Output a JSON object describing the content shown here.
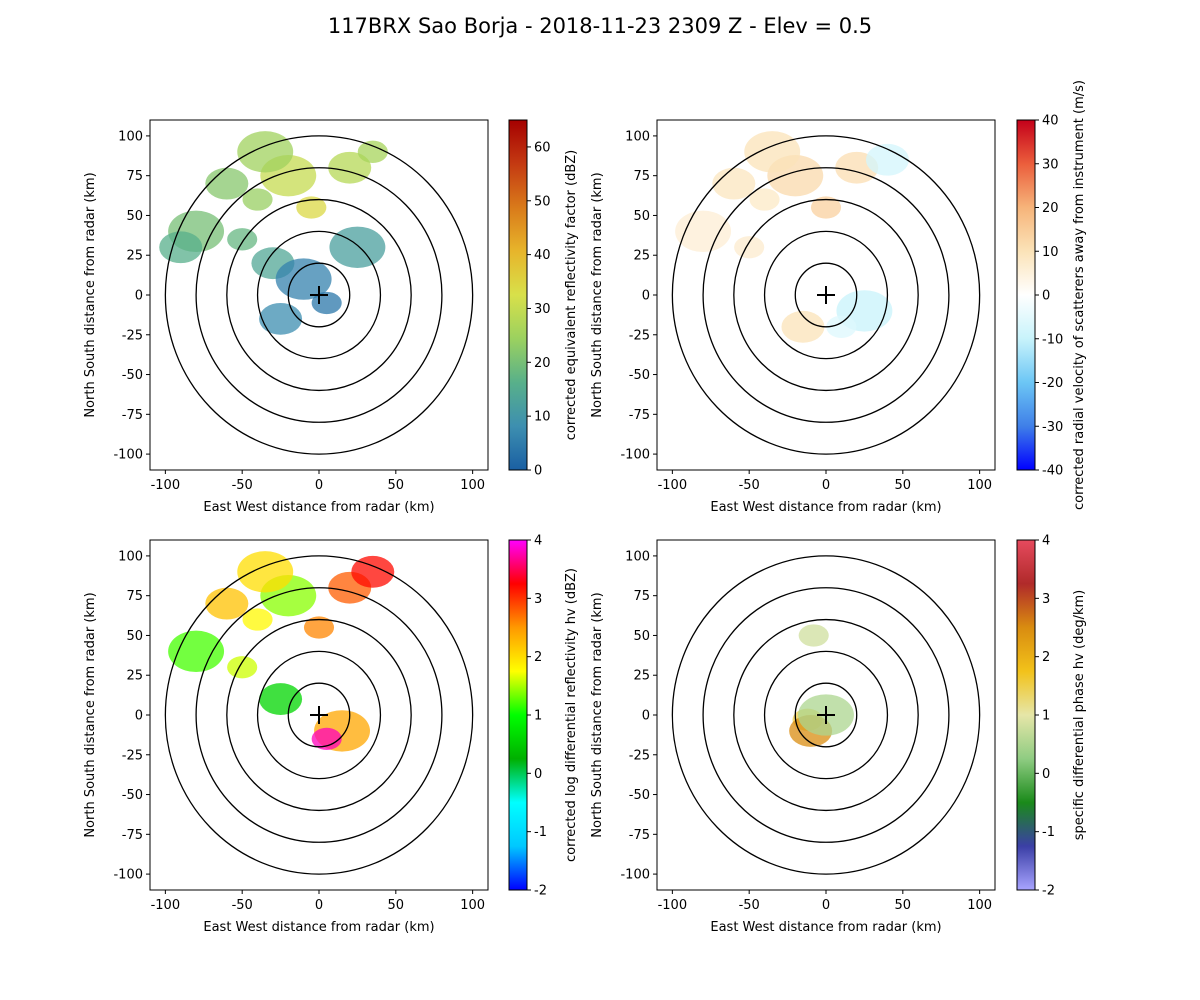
{
  "figure": {
    "title": "117BRX Sao Borja - 2018-11-23 2309 Z -  Elev = 0.5"
  },
  "chart_data": [
    {
      "type": "heatmap",
      "name": "reflectivity",
      "field": "corrected equivalent reflectivity factor (dBZ)",
      "xlabel": "East West distance from radar (km)",
      "ylabel": "North South distance from radar (km)",
      "xlim": [
        -110,
        110
      ],
      "ylim": [
        -110,
        110
      ],
      "xticks": [
        -100,
        -50,
        0,
        50,
        100
      ],
      "yticks": [
        -100,
        -75,
        -50,
        -25,
        0,
        25,
        50,
        75,
        100
      ],
      "range_rings_km": [
        20,
        40,
        60,
        80,
        100
      ],
      "colorbar": {
        "label": "corrected equivalent reflectivity factor (dBZ)",
        "min": 0,
        "max": 65,
        "ticks": [
          0,
          10,
          20,
          30,
          40,
          50,
          60
        ],
        "colors": [
          "#1a5fa3",
          "#3d8fb0",
          "#58b08a",
          "#9bd15f",
          "#d8e04a",
          "#e7b52b",
          "#d97a1a",
          "#c43a12",
          "#a50000"
        ]
      },
      "echoes": [
        {
          "x": -40,
          "y": 60,
          "value": 24
        },
        {
          "x": -60,
          "y": 70,
          "value": 22
        },
        {
          "x": -20,
          "y": 75,
          "value": 30
        },
        {
          "x": -5,
          "y": 55,
          "value": 34
        },
        {
          "x": 20,
          "y": 80,
          "value": 28
        },
        {
          "x": -80,
          "y": 40,
          "value": 20
        },
        {
          "x": -50,
          "y": 35,
          "value": 18
        },
        {
          "x": -30,
          "y": 20,
          "value": 14
        },
        {
          "x": -10,
          "y": 10,
          "value": 6
        },
        {
          "x": 5,
          "y": -5,
          "value": 4
        },
        {
          "x": -25,
          "y": -15,
          "value": 8
        },
        {
          "x": 25,
          "y": 30,
          "value": 12
        },
        {
          "x": 35,
          "y": 90,
          "value": 26
        },
        {
          "x": -90,
          "y": 30,
          "value": 16
        },
        {
          "x": -35,
          "y": 90,
          "value": 25
        }
      ]
    },
    {
      "type": "heatmap",
      "name": "velocity",
      "field": "corrected radial velocity of scatterers away from instrument (m/s)",
      "xlabel": "East West distance from radar (km)",
      "ylabel": "North South distance from radar (km)",
      "xlim": [
        -110,
        110
      ],
      "ylim": [
        -110,
        110
      ],
      "xticks": [
        -100,
        -50,
        0,
        50,
        100
      ],
      "yticks": [
        -100,
        -75,
        -50,
        -25,
        0,
        25,
        50,
        75,
        100
      ],
      "range_rings_km": [
        20,
        40,
        60,
        80,
        100
      ],
      "colorbar": {
        "label": "corrected radial velocity of scatterers away from instrument (m/s)",
        "min": -40,
        "max": 40,
        "ticks": [
          -40,
          -30,
          -20,
          -10,
          0,
          10,
          20,
          30,
          40
        ],
        "colors": [
          "#0000ff",
          "#3f7fe8",
          "#6cc6f5",
          "#c8f3fb",
          "#ffffff",
          "#fbe3b8",
          "#f6b47a",
          "#eb5e3c",
          "#c4001a"
        ]
      },
      "echoes": [
        {
          "x": -40,
          "y": 60,
          "value": 8
        },
        {
          "x": -60,
          "y": 70,
          "value": 9
        },
        {
          "x": -20,
          "y": 75,
          "value": 12
        },
        {
          "x": 0,
          "y": 55,
          "value": 14
        },
        {
          "x": 20,
          "y": 80,
          "value": 11
        },
        {
          "x": -80,
          "y": 40,
          "value": 6
        },
        {
          "x": -50,
          "y": 30,
          "value": 7
        },
        {
          "x": 40,
          "y": 85,
          "value": -8
        },
        {
          "x": 25,
          "y": -10,
          "value": -10
        },
        {
          "x": 10,
          "y": -20,
          "value": -6
        },
        {
          "x": -15,
          "y": -20,
          "value": 10
        },
        {
          "x": -35,
          "y": 90,
          "value": 10
        }
      ]
    },
    {
      "type": "heatmap",
      "name": "differential_reflectivity",
      "field": "corrected log differential reflectivity hv (dBZ)",
      "xlabel": "East West distance from radar (km)",
      "ylabel": "North South distance from radar (km)",
      "xlim": [
        -110,
        110
      ],
      "ylim": [
        -110,
        110
      ],
      "xticks": [
        -100,
        -50,
        0,
        50,
        100
      ],
      "yticks": [
        -100,
        -75,
        -50,
        -25,
        0,
        25,
        50,
        75,
        100
      ],
      "range_rings_km": [
        20,
        40,
        60,
        80,
        100
      ],
      "colorbar": {
        "label": "corrected log differential reflectivity hv (dBZ)",
        "min": -2,
        "max": 4,
        "ticks": [
          -2,
          -1,
          0,
          1,
          2,
          3,
          4
        ],
        "colors": [
          "#0000ff",
          "#00c8ff",
          "#00ffff",
          "#00b000",
          "#00ff00",
          "#ffff00",
          "#ff9900",
          "#ff0000",
          "#ff00ff"
        ]
      },
      "echoes": [
        {
          "x": -40,
          "y": 60,
          "value": 1.8
        },
        {
          "x": -60,
          "y": 70,
          "value": 2.2
        },
        {
          "x": -20,
          "y": 75,
          "value": 1.4
        },
        {
          "x": 0,
          "y": 55,
          "value": 2.6
        },
        {
          "x": 20,
          "y": 80,
          "value": 2.8
        },
        {
          "x": -80,
          "y": 40,
          "value": 1.2
        },
        {
          "x": -50,
          "y": 30,
          "value": 1.6
        },
        {
          "x": -25,
          "y": 10,
          "value": 0.6
        },
        {
          "x": 15,
          "y": -10,
          "value": 2.4
        },
        {
          "x": 5,
          "y": -15,
          "value": 3.8
        },
        {
          "x": 35,
          "y": 90,
          "value": 3.2
        },
        {
          "x": -35,
          "y": 90,
          "value": 2.0
        }
      ]
    },
    {
      "type": "heatmap",
      "name": "specific_differential_phase",
      "field": "specific differential phase hv (deg/km)",
      "xlabel": "East West distance from radar (km)",
      "ylabel": "North South distance from radar (km)",
      "xlim": [
        -110,
        110
      ],
      "ylim": [
        -110,
        110
      ],
      "xticks": [
        -100,
        -50,
        0,
        50,
        100
      ],
      "yticks": [
        -100,
        -75,
        -50,
        -25,
        0,
        25,
        50,
        75,
        100
      ],
      "range_rings_km": [
        20,
        40,
        60,
        80,
        100
      ],
      "colorbar": {
        "label": "specific differential phase hv (deg/km)",
        "min": -2,
        "max": 4,
        "ticks": [
          -2,
          -1,
          0,
          1,
          2,
          3,
          4
        ],
        "colors": [
          "#a8a4ff",
          "#3b3fa6",
          "#1a8a1a",
          "#8fcc82",
          "#e6e6a8",
          "#f2c21a",
          "#d98c10",
          "#b02a2a",
          "#e64a5e"
        ]
      },
      "echoes": [
        {
          "x": -12,
          "y": -3,
          "value": 1.5
        },
        {
          "x": -10,
          "y": -10,
          "value": 2.5
        },
        {
          "x": 0,
          "y": 0,
          "value": 0.5
        },
        {
          "x": -8,
          "y": 50,
          "value": 0.8
        }
      ]
    }
  ]
}
